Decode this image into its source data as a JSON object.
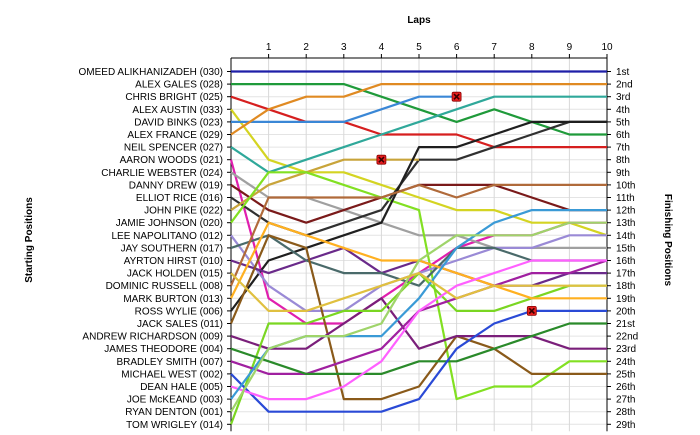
{
  "chart_data": {
    "type": "line",
    "title": "",
    "top_axis_label": "Laps",
    "left_axis_label": "Starting Positions",
    "right_axis_label": "Finishing Positions",
    "laps": [
      1,
      2,
      3,
      4,
      5,
      6,
      7,
      8,
      9,
      10
    ],
    "grid": true,
    "starting_order": [
      "OMEED ALIKHANIZADEH (030)",
      "ALEX GALES (028)",
      "CHRIS BRIGHT (025)",
      "ALEX AUSTIN (033)",
      "DAVID BINKS (023)",
      "ALEX FRANCE (029)",
      "NEIL SPENCER (027)",
      "AARON WOODS (021)",
      "CHARLIE WEBSTER (024)",
      "DANNY DREW (019)",
      "ELLIOT RICE (016)",
      "JOHN PIKE (022)",
      "JAMIE JOHNSON (020)",
      "LEE NAPOLITANO (012)",
      "JAY SOUTHERN (017)",
      "AYRTON HIRST (010)",
      "JACK HOLDEN (015)",
      "DOMINIC RUSSELL (008)",
      "MARK BURTON (013)",
      "ROSS WYLIE (006)",
      "JACK SALES (011)",
      "ANDREW RICHARDSON (009)",
      "JAMES THEODORE (004)",
      "BRADLEY SMITH (007)",
      "MICHAEL WEST (002)",
      "DEAN HALE (005)",
      "JOE McKEAND (003)",
      "RYAN DENTON (001)",
      "TOM WRIGLEY (014)"
    ],
    "finishing_labels": [
      "1st",
      "2nd",
      "3rd",
      "4th",
      "5th",
      "6th",
      "7th",
      "8th",
      "9th",
      "10th",
      "11th",
      "12th",
      "13th",
      "14th",
      "15th",
      "16th",
      "17th",
      "18th",
      "19th",
      "20th",
      "21st",
      "22nd",
      "23rd",
      "24th",
      "25th",
      "26th",
      "27th",
      "28th",
      "29th"
    ],
    "series": [
      {
        "color": "#1f1fa8",
        "positions": [
          1,
          1,
          1,
          1,
          1,
          1,
          1,
          1,
          1,
          1,
          1
        ]
      },
      {
        "color": "#1f9a3a",
        "positions": [
          2,
          2,
          2,
          2,
          3,
          4,
          5,
          4,
          5,
          6,
          6
        ]
      },
      {
        "color": "#d61f1f",
        "positions": [
          3,
          4,
          5,
          5,
          6,
          6,
          6,
          7,
          7,
          7,
          7
        ]
      },
      {
        "color": "#d4d422",
        "positions": [
          4,
          8,
          9,
          9,
          10,
          11,
          12,
          12,
          13,
          13,
          14
        ]
      },
      {
        "color": "#3a87d6",
        "positions": [
          5,
          5,
          5,
          5,
          4,
          3,
          3
        ]
      },
      {
        "color": "#e08a22",
        "positions": [
          6,
          4,
          3,
          3,
          2,
          2,
          2,
          2,
          2,
          2,
          2
        ]
      },
      {
        "color": "#2fa89a",
        "positions": [
          7,
          9,
          8,
          7,
          6,
          5,
          4,
          3,
          3,
          3,
          3
        ]
      },
      {
        "color": "#e01fae",
        "positions": [
          8,
          19,
          21,
          21,
          19,
          17,
          15,
          14,
          14,
          13,
          13
        ]
      },
      {
        "color": "#a0a0a0",
        "positions": [
          9,
          11,
          11,
          12,
          13,
          14,
          14,
          15,
          15,
          15,
          15
        ]
      },
      {
        "color": "#7a1a1a",
        "positions": [
          10,
          12,
          13,
          12,
          11,
          10,
          10,
          10,
          11,
          12,
          12
        ]
      },
      {
        "color": "#303030",
        "positions": [
          11,
          13,
          14,
          13,
          12,
          8,
          8,
          7,
          6,
          5,
          5
        ]
      },
      {
        "color": "#c8a43a",
        "positions": [
          12,
          10,
          9,
          8,
          8,
          8
        ]
      },
      {
        "color": "#82e022",
        "positions": [
          13,
          9,
          9,
          10,
          11,
          12,
          27,
          26,
          26,
          24,
          24
        ]
      },
      {
        "color": "#1f1f1f",
        "positions": [
          20,
          16,
          15,
          14,
          13,
          7,
          7,
          6,
          5,
          5,
          5
        ]
      },
      {
        "color": "#9a8ad6",
        "positions": [
          14,
          18,
          20,
          20,
          18,
          17,
          16,
          15,
          15,
          14,
          14
        ]
      },
      {
        "color": "#6a2a8a",
        "positions": [
          16,
          17,
          16,
          15,
          17,
          16,
          17,
          18,
          18,
          17,
          17
        ]
      },
      {
        "color": "#4a6a6a",
        "positions": [
          15,
          14,
          16,
          17,
          17,
          18,
          15,
          15,
          16,
          16,
          16
        ]
      },
      {
        "color": "#8a5a1a",
        "positions": [
          21,
          14,
          15,
          27,
          27,
          26,
          22,
          23,
          25,
          25,
          25
        ]
      },
      {
        "color": "#b06a3a",
        "positions": [
          18,
          11,
          11,
          11,
          11,
          10,
          11,
          10,
          10,
          10,
          10
        ]
      },
      {
        "color": "#7a1f7a",
        "positions": [
          22,
          23,
          23,
          21,
          19,
          23,
          22,
          22,
          22,
          23,
          23
        ]
      },
      {
        "color": "#7ad622",
        "positions": [
          29,
          21,
          21,
          20,
          20,
          17,
          20,
          20,
          19,
          18,
          18
        ]
      },
      {
        "color": "#ffb020",
        "positions": [
          19,
          13,
          14,
          15,
          16,
          16,
          17,
          18,
          19,
          19,
          19
        ]
      },
      {
        "color": "#a020a0",
        "positions": [
          24,
          25,
          25,
          24,
          23,
          20,
          19,
          18,
          17,
          17,
          16
        ]
      },
      {
        "color": "#2a8a2a",
        "positions": [
          23,
          24,
          25,
          25,
          25,
          24,
          24,
          23,
          22,
          21,
          21
        ]
      },
      {
        "color": "#2a4ad6",
        "positions": [
          25,
          28,
          28,
          28,
          28,
          27,
          23,
          21,
          20,
          20,
          20
        ]
      },
      {
        "color": "#ff60ff",
        "positions": [
          26,
          27,
          27,
          26,
          24,
          20,
          18,
          17,
          16,
          16,
          16
        ]
      },
      {
        "color": "#3a9ad6",
        "positions": [
          27,
          23,
          22,
          22,
          22,
          19,
          15,
          13,
          12,
          12,
          12
        ]
      },
      {
        "color": "#9fd46a",
        "positions": [
          28,
          23,
          22,
          22,
          21,
          16,
          14,
          14,
          14,
          13,
          13
        ]
      },
      {
        "color": "#e0c040",
        "positions": [
          17,
          20,
          20,
          19,
          18,
          17,
          19,
          18,
          18,
          18,
          18
        ]
      }
    ],
    "retirements": [
      {
        "lap": 6,
        "position": 3
      },
      {
        "lap": 4,
        "position": 8
      },
      {
        "lap": 8,
        "position": 20
      }
    ]
  }
}
